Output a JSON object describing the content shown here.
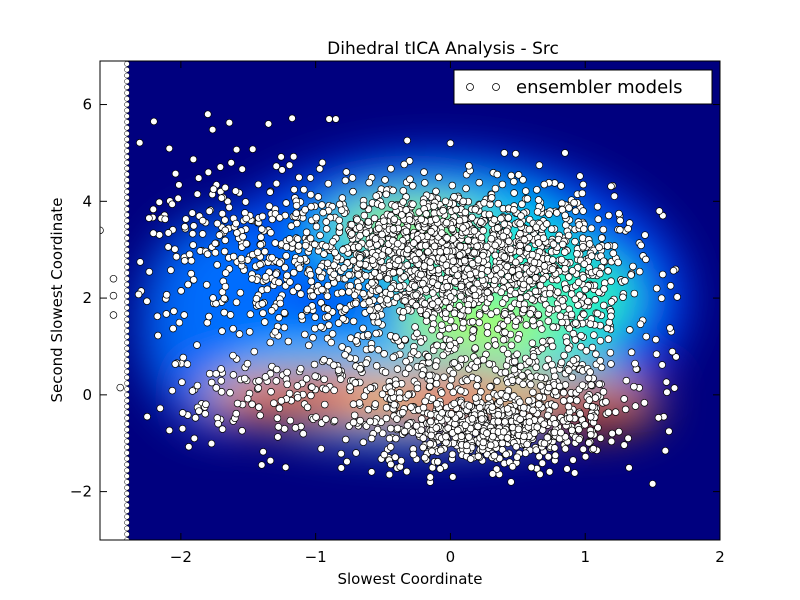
{
  "chart_data": {
    "type": "scatter",
    "title": "Dihedral tICA Analysis - Src",
    "xlabel": "Slowest Coordinate",
    "ylabel": "Second Slowest Coordinate",
    "xlim": [
      -2.6,
      2.0
    ],
    "ylim": [
      -3.0,
      6.9
    ],
    "xticks": [
      -2,
      -1,
      0,
      1,
      2
    ],
    "yticks": [
      -2,
      0,
      2,
      4,
      6
    ],
    "xtick_labels": [
      "−2",
      "−1",
      "0",
      "1",
      "2"
    ],
    "ytick_labels": [
      "−2",
      "0",
      "2",
      "4",
      "6"
    ],
    "grid": false,
    "legend": {
      "position": "top-right",
      "entries": [
        "ensembler models"
      ]
    },
    "background_colormap": "jet",
    "background_color": "#00007f",
    "series": [
      {
        "name": "ensembler models",
        "kind": "scatter",
        "marker": "circle",
        "face_color": "#ffffff",
        "edge_color": "#000000",
        "clusters": [
          {
            "cx": -0.05,
            "cy": 2.8,
            "sx": 0.62,
            "sy": 0.75,
            "n": 1700
          },
          {
            "cx": 0.25,
            "cy": -0.75,
            "sx": 0.38,
            "sy": 0.35,
            "n": 450
          },
          {
            "cx": -0.2,
            "cy": 0.2,
            "sx": 0.75,
            "sy": 0.8,
            "n": 500
          },
          {
            "cx": -1.5,
            "cy": 3.0,
            "sx": 0.4,
            "sy": 1.0,
            "n": 230
          },
          {
            "cx": 0.85,
            "cy": 1.8,
            "sx": 0.3,
            "sy": 1.0,
            "n": 170
          },
          {
            "cx": -1.7,
            "cy": -0.3,
            "sx": 0.25,
            "sy": 0.4,
            "n": 40
          },
          {
            "cx": 0.75,
            "cy": -0.2,
            "sx": 0.35,
            "sy": 0.6,
            "n": 110
          }
        ],
        "outliers": [
          [
            -2.6,
            3.4
          ],
          [
            -2.5,
            2.4
          ],
          [
            -2.5,
            2.05
          ],
          [
            -2.5,
            1.65
          ],
          [
            -2.45,
            0.15
          ],
          [
            -2.2,
            5.65
          ],
          [
            -1.8,
            5.8
          ],
          [
            -1.35,
            5.6
          ],
          [
            -0.9,
            5.7
          ],
          [
            -0.85,
            5.7
          ],
          [
            -0.95,
            4.8
          ],
          [
            -2.25,
            -0.45
          ],
          [
            -1.9,
            -0.9
          ],
          [
            -1.4,
            -1.45
          ],
          [
            -0.7,
            -1.2
          ],
          [
            -0.15,
            -1.7
          ],
          [
            0.45,
            -1.8
          ],
          [
            0.6,
            -1.5
          ],
          [
            1.55,
            3.8
          ],
          [
            1.45,
            2.8
          ],
          [
            1.2,
            -0.8
          ],
          [
            1.3,
            -0.3
          ],
          [
            0.0,
            5.2
          ],
          [
            0.4,
            5.0
          ],
          [
            0.85,
            5.0
          ]
        ]
      }
    ]
  }
}
